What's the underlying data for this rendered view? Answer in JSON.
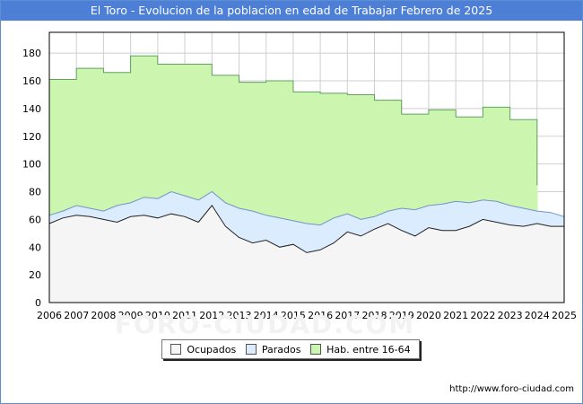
{
  "header": {
    "title": "El Toro - Evolucion de la poblacion en edad de Trabajar Febrero de 2025"
  },
  "footer": {
    "url": "http://www.foro-ciudad.com",
    "watermark": "FORO-CIUDAD.COM"
  },
  "colors": {
    "title_bg": "#4d7fd6",
    "hab_fill": "#ccf5b0",
    "hab_line": "#5fa35f",
    "parados_fill": "#dcecff",
    "parados_line": "#6f95c7",
    "ocupados_fill": "#f5f5f5",
    "ocupados_line": "#222222",
    "grid": "#cfcfcf"
  },
  "chart_data": {
    "type": "area",
    "title": "El Toro - Evolucion de la poblacion en edad de Trabajar Febrero de 2025",
    "xlabel": "",
    "ylabel": "",
    "xlim": [
      2006,
      2025
    ],
    "ylim": [
      0,
      195
    ],
    "x_ticks": [
      2006,
      2007,
      2008,
      2009,
      2010,
      2011,
      2012,
      2013,
      2014,
      2015,
      2016,
      2017,
      2018,
      2019,
      2020,
      2021,
      2022,
      2023,
      2024,
      2025
    ],
    "y_ticks": [
      0,
      20,
      40,
      60,
      80,
      100,
      120,
      140,
      160,
      180
    ],
    "grid": true,
    "legend_position": "bottom",
    "series": [
      {
        "name": "Hab. entre 16-64",
        "step": true,
        "x": [
          2006,
          2007,
          2008,
          2009,
          2010,
          2011,
          2012,
          2013,
          2014,
          2015,
          2016,
          2017,
          2018,
          2019,
          2020,
          2021,
          2022,
          2023,
          2024
        ],
        "values": [
          161,
          169,
          166,
          178,
          172,
          172,
          164,
          159,
          160,
          152,
          151,
          150,
          146,
          136,
          139,
          134,
          141,
          132,
          85
        ]
      },
      {
        "name": "Parados",
        "x": [
          2006.0,
          2006.5,
          2007.0,
          2007.5,
          2008.0,
          2008.5,
          2009.0,
          2009.5,
          2010.0,
          2010.5,
          2011.0,
          2011.5,
          2012.0,
          2012.5,
          2013.0,
          2013.5,
          2014.0,
          2014.5,
          2015.0,
          2015.5,
          2016.0,
          2016.5,
          2017.0,
          2017.5,
          2018.0,
          2018.5,
          2019.0,
          2019.5,
          2020.0,
          2020.5,
          2021.0,
          2021.5,
          2022.0,
          2022.5,
          2023.0,
          2023.5,
          2024.0,
          2024.5,
          2025.0
        ],
        "values": [
          63,
          66,
          70,
          68,
          66,
          70,
          72,
          76,
          75,
          80,
          77,
          74,
          80,
          72,
          68,
          66,
          63,
          61,
          59,
          57,
          56,
          61,
          64,
          60,
          62,
          66,
          68,
          67,
          70,
          71,
          73,
          72,
          74,
          73,
          70,
          68,
          66,
          65,
          62
        ]
      },
      {
        "name": "Ocupados",
        "x": [
          2006.0,
          2006.5,
          2007.0,
          2007.5,
          2008.0,
          2008.5,
          2009.0,
          2009.5,
          2010.0,
          2010.5,
          2011.0,
          2011.5,
          2012.0,
          2012.5,
          2013.0,
          2013.5,
          2014.0,
          2014.5,
          2015.0,
          2015.5,
          2016.0,
          2016.5,
          2017.0,
          2017.5,
          2018.0,
          2018.5,
          2019.0,
          2019.5,
          2020.0,
          2020.5,
          2021.0,
          2021.5,
          2022.0,
          2022.5,
          2023.0,
          2023.5,
          2024.0,
          2024.5,
          2025.0
        ],
        "values": [
          57,
          61,
          63,
          62,
          60,
          58,
          62,
          63,
          61,
          64,
          62,
          58,
          70,
          55,
          47,
          43,
          45,
          40,
          42,
          36,
          38,
          43,
          51,
          48,
          53,
          57,
          52,
          48,
          54,
          52,
          52,
          55,
          60,
          58,
          56,
          55,
          57,
          55,
          55
        ]
      }
    ]
  },
  "legend": {
    "ocupados": "Ocupados",
    "parados": "Parados",
    "hab": "Hab. entre 16-64"
  }
}
